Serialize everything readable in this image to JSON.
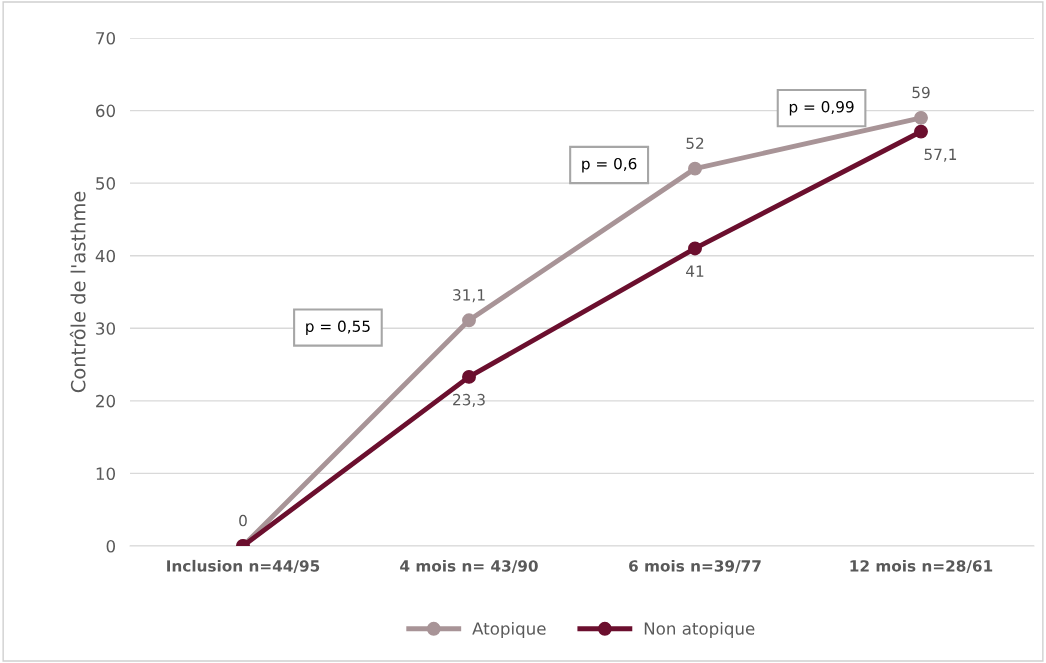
{
  "chart_data": {
    "type": "line",
    "ylabel": "Contrôle de l'asthme",
    "categories": [
      "Inclusion n=44/95",
      "4 mois n= 43/90",
      "6 mois n=39/77",
      "12 mois n=28/61"
    ],
    "series": [
      {
        "name": "Atopique",
        "color": "#a89497",
        "values": [
          0,
          31.1,
          52,
          59
        ],
        "value_labels": [
          "0",
          "31,1",
          "52",
          "59"
        ]
      },
      {
        "name": "Non atopique",
        "color": "#6b0f2e",
        "values": [
          0,
          23.3,
          41,
          57.1
        ],
        "value_labels": [
          null,
          "23,3",
          "41",
          "57,1"
        ]
      }
    ],
    "annotations": [
      "p = 0,55",
      "p = 0,6",
      "p = 0,99"
    ],
    "ylim": [
      0,
      70
    ],
    "yticks": [
      0,
      10,
      20,
      30,
      40,
      50,
      60,
      70
    ],
    "grid": "y",
    "legend": "bottom",
    "marker": "circle",
    "line_style": "solid"
  }
}
